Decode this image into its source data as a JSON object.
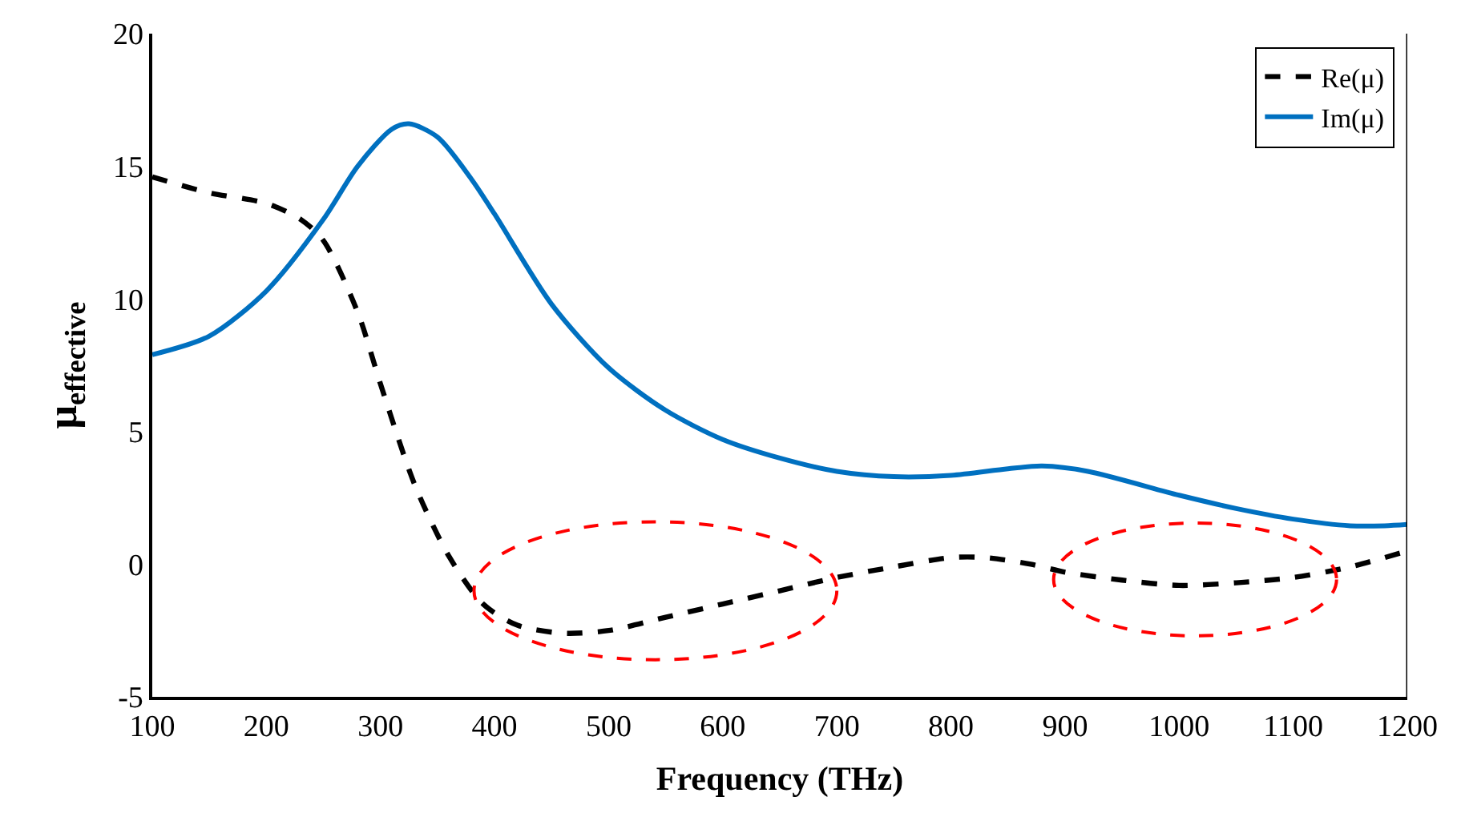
{
  "chart_data": {
    "type": "line",
    "xlabel": "Frequency (THz)",
    "ylabel": "μ$_{effective}$",
    "xlim": [
      100,
      1200
    ],
    "xticks": [
      100,
      200,
      300,
      400,
      500,
      600,
      700,
      800,
      900,
      1000,
      1100,
      1200
    ],
    "ylim": [
      -5,
      20
    ],
    "yticks": [
      -5,
      0,
      5,
      10,
      15,
      20
    ],
    "legend": "top right",
    "marker": "none",
    "series": [
      {
        "name": "Re(μ)",
        "color": "#000000",
        "line_style": "dashed",
        "x": [
          100,
          150,
          200,
          230,
          250,
          280,
          300,
          330,
          360,
          390,
          420,
          460,
          500,
          550,
          600,
          650,
          700,
          750,
          800,
          830,
          870,
          900,
          950,
          1000,
          1050,
          1100,
          1150,
          1200
        ],
        "values": [
          14.6,
          14.0,
          13.6,
          13.0,
          12.2,
          9.5,
          6.8,
          3.0,
          0.3,
          -1.5,
          -2.3,
          -2.6,
          -2.5,
          -2.0,
          -1.5,
          -1.0,
          -0.5,
          -0.1,
          0.25,
          0.25,
          0.0,
          -0.3,
          -0.6,
          -0.8,
          -0.7,
          -0.5,
          -0.1,
          0.5
        ]
      },
      {
        "name": "Im(μ)",
        "color": "#0070c0",
        "line_style": "solid",
        "x": [
          100,
          150,
          200,
          250,
          280,
          310,
          325,
          350,
          380,
          400,
          450,
          500,
          550,
          600,
          650,
          700,
          750,
          800,
          850,
          880,
          920,
          1000,
          1050,
          1100,
          1150,
          1180,
          1200
        ],
        "values": [
          7.9,
          8.6,
          10.3,
          13.0,
          15.0,
          16.4,
          16.6,
          16.1,
          14.5,
          13.2,
          9.8,
          7.4,
          5.8,
          4.7,
          4.0,
          3.5,
          3.3,
          3.35,
          3.6,
          3.7,
          3.5,
          2.6,
          2.1,
          1.7,
          1.45,
          1.45,
          1.5
        ]
      }
    ]
  }
}
